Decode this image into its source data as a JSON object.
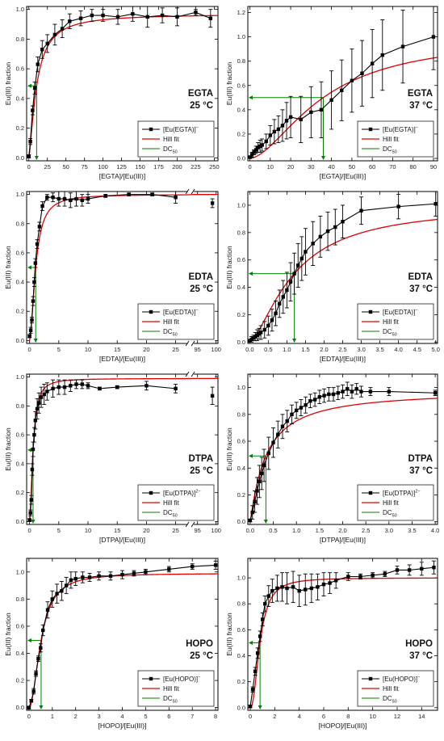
{
  "figure": {
    "y_label": "Eu(III) fraction",
    "legend_fit": "Hill fit",
    "legend_dc50": "DC",
    "legend_dc50_sub": "50",
    "colors": {
      "data": "#000000",
      "fit": "#e00000",
      "dc50": "#008000"
    }
  },
  "chart_data": [
    {
      "type": "line",
      "title": "EGTA",
      "subtitle": "25 °C",
      "xlabel": "[EGTA]/[Eu(III)]",
      "ylabel": "Eu(III) fraction",
      "legend": [
        "[Eu(EGTA)]",
        "Hill fit",
        "DC50"
      ],
      "legend_sup": "−",
      "xlim": [
        -3,
        255
      ],
      "ylim": [
        -0.02,
        1.02
      ],
      "xticks": [
        0,
        25,
        50,
        75,
        100,
        125,
        150,
        175,
        200,
        225,
        250
      ],
      "yticks": [
        0,
        0.2,
        0.4,
        0.6,
        0.8,
        1.0
      ],
      "x": [
        0,
        2,
        5,
        8,
        12,
        18,
        25,
        35,
        45,
        55,
        70,
        85,
        100,
        120,
        140,
        160,
        180,
        200,
        225,
        245
      ],
      "y": [
        0.01,
        0.11,
        0.32,
        0.47,
        0.63,
        0.73,
        0.77,
        0.83,
        0.87,
        0.92,
        0.94,
        0.96,
        0.96,
        0.95,
        0.97,
        0.95,
        0.96,
        0.95,
        0.98,
        0.94
      ],
      "err": [
        0.01,
        0.02,
        0.03,
        0.04,
        0.05,
        0.06,
        0.06,
        0.07,
        0.06,
        0.05,
        0.05,
        0.04,
        0.04,
        0.05,
        0.05,
        0.07,
        0.05,
        0.06,
        0.02,
        0.06
      ],
      "hill": {
        "top": 0.97,
        "k": 10.5,
        "n": 1.4
      },
      "dc50": 10.5
    },
    {
      "type": "line",
      "title": "EGTA",
      "subtitle": "37 °C",
      "xlabel": "[EGTA]/[Eu(III)]",
      "ylabel": "Eu(III) fraction",
      "legend": [
        "[Eu(EGTA)]",
        "Hill fit",
        "DC50"
      ],
      "legend_sup": "−",
      "xlim": [
        -1,
        92
      ],
      "ylim": [
        -0.02,
        1.25
      ],
      "xticks": [
        0,
        10,
        20,
        30,
        40,
        50,
        60,
        70,
        80,
        90
      ],
      "yticks": [
        0,
        0.2,
        0.4,
        0.6,
        0.8,
        1.0,
        1.2
      ],
      "x": [
        0,
        1,
        2,
        3,
        4,
        5,
        6,
        8,
        10,
        12,
        14,
        16,
        18,
        20,
        25,
        30,
        35,
        40,
        45,
        50,
        55,
        60,
        65,
        75,
        90
      ],
      "y": [
        0.01,
        0.03,
        0.05,
        0.07,
        0.09,
        0.1,
        0.11,
        0.14,
        0.19,
        0.22,
        0.24,
        0.27,
        0.31,
        0.34,
        0.32,
        0.38,
        0.4,
        0.48,
        0.56,
        0.64,
        0.7,
        0.78,
        0.85,
        0.92,
        1.0
      ],
      "err": [
        0.01,
        0.02,
        0.02,
        0.03,
        0.04,
        0.05,
        0.05,
        0.06,
        0.08,
        0.1,
        0.11,
        0.13,
        0.15,
        0.17,
        0.19,
        0.21,
        0.23,
        0.24,
        0.25,
        0.26,
        0.27,
        0.28,
        0.29,
        0.3,
        0.27
      ],
      "hill": {
        "top": 1.0,
        "k": 36,
        "n": 1.7
      },
      "dc50": 36
    },
    {
      "type": "line",
      "title": "EDTA",
      "subtitle": "25 °C",
      "xlabel": "[EDTA]/[Eu(III)]",
      "ylabel": "Eu(III) fraction",
      "legend": [
        "[Eu(EDTA)]",
        "Hill fit",
        "DC50"
      ],
      "legend_sup": "−",
      "break": {
        "x0": 27,
        "x1": 94,
        "left_w": 0.84
      },
      "xlim_left": [
        -0.5,
        27
      ],
      "xlim_right": [
        94,
        100.5
      ],
      "ylim": [
        -0.02,
        1.02
      ],
      "xticks_left": [
        0,
        5,
        10,
        15,
        20,
        25
      ],
      "xticks_right": [
        95,
        100
      ],
      "yticks": [
        0,
        0.2,
        0.4,
        0.6,
        0.8,
        1.0
      ],
      "x": [
        0,
        0.2,
        0.4,
        0.6,
        0.8,
        1.0,
        1.3,
        1.7,
        2.2,
        3.0,
        4.0,
        5.0,
        6.0,
        7.0,
        8.0,
        9.0,
        10.0,
        13.0,
        17.0,
        21.0,
        25.0,
        99.0
      ],
      "y": [
        0.03,
        0.07,
        0.14,
        0.27,
        0.4,
        0.53,
        0.66,
        0.78,
        0.92,
        0.98,
        0.98,
        0.97,
        0.97,
        0.96,
        0.97,
        0.96,
        0.97,
        0.99,
        1.0,
        1.0,
        0.98,
        0.94
      ],
      "err": [
        0.01,
        0.02,
        0.02,
        0.03,
        0.03,
        0.03,
        0.03,
        0.03,
        0.03,
        0.02,
        0.03,
        0.05,
        0.05,
        0.05,
        0.05,
        0.04,
        0.03,
        0.01,
        0.01,
        0.01,
        0.04,
        0.03
      ],
      "hill": {
        "top": 1.0,
        "k": 1.05,
        "n": 1.8
      },
      "dc50": 1.05
    },
    {
      "type": "line",
      "title": "EDTA",
      "subtitle": "37 °C",
      "xlabel": "[EDTA]/[Eu(III)]",
      "ylabel": "Eu(III) fraction",
      "legend": [
        "[Eu(EDTA)]",
        "Hill fit",
        "DC50"
      ],
      "legend_sup": "−",
      "xlim": [
        -0.05,
        5.05
      ],
      "ylim": [
        -0.01,
        1.1
      ],
      "xticks": [
        0,
        0.5,
        1.0,
        1.5,
        2.0,
        2.5,
        3.0,
        3.5,
        4.0,
        4.5,
        5.0
      ],
      "yticks": [
        0,
        0.2,
        0.4,
        0.6,
        0.8,
        1.0
      ],
      "x": [
        0,
        0.05,
        0.1,
        0.15,
        0.2,
        0.25,
        0.3,
        0.4,
        0.5,
        0.6,
        0.7,
        0.8,
        0.9,
        1.0,
        1.1,
        1.2,
        1.3,
        1.4,
        1.5,
        1.7,
        1.9,
        2.1,
        2.3,
        2.5,
        3.0,
        4.0,
        5.0
      ],
      "y": [
        0.01,
        0.02,
        0.03,
        0.04,
        0.05,
        0.06,
        0.07,
        0.09,
        0.12,
        0.16,
        0.21,
        0.28,
        0.33,
        0.38,
        0.44,
        0.5,
        0.56,
        0.61,
        0.66,
        0.72,
        0.77,
        0.81,
        0.84,
        0.88,
        0.96,
        0.99,
        1.01
      ],
      "err": [
        0.01,
        0.02,
        0.02,
        0.03,
        0.04,
        0.04,
        0.05,
        0.06,
        0.07,
        0.08,
        0.09,
        0.1,
        0.12,
        0.13,
        0.14,
        0.15,
        0.16,
        0.16,
        0.17,
        0.16,
        0.15,
        0.14,
        0.13,
        0.12,
        0.1,
        0.09,
        0.09
      ],
      "hill": {
        "top": 1.0,
        "k": 1.2,
        "n": 1.5
      },
      "dc50": 1.2
    },
    {
      "type": "line",
      "title": "DTPA",
      "subtitle": "25 °C",
      "xlabel": "[DTPA]/[Eu(III)]",
      "ylabel": "Eu(III) fraction",
      "legend": [
        "[Eu(DTPA)]",
        "Hill fit",
        "DC50"
      ],
      "legend_sup": "2−",
      "break": {
        "x0": 27,
        "x1": 94,
        "left_w": 0.84
      },
      "xlim_left": [
        -0.5,
        27
      ],
      "xlim_right": [
        94,
        100.5
      ],
      "ylim": [
        -0.02,
        1.02
      ],
      "xticks_left": [
        0,
        5,
        10,
        15,
        20,
        25
      ],
      "xticks_right": [
        95,
        100
      ],
      "yticks": [
        0,
        0.2,
        0.4,
        0.6,
        0.8,
        1.0
      ],
      "x": [
        0,
        0.15,
        0.3,
        0.45,
        0.6,
        0.8,
        1.0,
        1.3,
        1.6,
        2.0,
        2.5,
        3.0,
        4.0,
        5.0,
        6.0,
        7.0,
        8.0,
        9.0,
        10.0,
        12.0,
        15.0,
        20.0,
        25.0,
        99.0
      ],
      "y": [
        0.01,
        0.06,
        0.15,
        0.36,
        0.5,
        0.6,
        0.7,
        0.78,
        0.82,
        0.86,
        0.88,
        0.9,
        0.92,
        0.93,
        0.93,
        0.94,
        0.95,
        0.95,
        0.94,
        0.92,
        0.93,
        0.94,
        0.92,
        0.87
      ],
      "err": [
        0.01,
        0.02,
        0.03,
        0.04,
        0.05,
        0.05,
        0.06,
        0.07,
        0.07,
        0.07,
        0.07,
        0.06,
        0.06,
        0.05,
        0.05,
        0.04,
        0.03,
        0.03,
        0.02,
        0.01,
        0.01,
        0.03,
        0.03,
        0.06
      ],
      "hill": {
        "top": 0.99,
        "k": 0.6,
        "n": 1.8
      },
      "dc50": 0.6
    },
    {
      "type": "line",
      "title": "DTPA",
      "subtitle": "37 °C",
      "xlabel": "[DTPA]/[Eu(III)]",
      "ylabel": "Eu(III) fraction",
      "legend": [
        "[Eu(DTPA)]",
        "Hill fit",
        "DC50"
      ],
      "legend_sup": "2−",
      "xlim": [
        -0.05,
        4.05
      ],
      "ylim": [
        -0.02,
        1.1
      ],
      "xticks": [
        0,
        0.5,
        1.0,
        1.5,
        2.0,
        2.5,
        3.0,
        3.5,
        4.0
      ],
      "yticks": [
        0,
        0.2,
        0.4,
        0.6,
        0.8,
        1.0
      ],
      "x": [
        0,
        0.05,
        0.1,
        0.15,
        0.2,
        0.25,
        0.3,
        0.4,
        0.5,
        0.6,
        0.7,
        0.8,
        0.9,
        1.0,
        1.1,
        1.2,
        1.3,
        1.4,
        1.5,
        1.6,
        1.7,
        1.8,
        1.9,
        2.0,
        2.1,
        2.2,
        2.3,
        2.4,
        2.6,
        3.0,
        4.0
      ],
      "y": [
        0.01,
        0.07,
        0.15,
        0.23,
        0.3,
        0.36,
        0.42,
        0.51,
        0.59,
        0.65,
        0.71,
        0.75,
        0.8,
        0.83,
        0.85,
        0.87,
        0.9,
        0.91,
        0.93,
        0.94,
        0.95,
        0.95,
        0.96,
        0.97,
        0.99,
        0.97,
        0.99,
        0.97,
        0.97,
        0.97,
        0.96
      ],
      "err": [
        0.01,
        0.05,
        0.08,
        0.1,
        0.12,
        0.12,
        0.12,
        0.12,
        0.11,
        0.1,
        0.09,
        0.08,
        0.07,
        0.06,
        0.06,
        0.06,
        0.05,
        0.05,
        0.05,
        0.05,
        0.05,
        0.05,
        0.05,
        0.05,
        0.05,
        0.05,
        0.04,
        0.04,
        0.03,
        0.03,
        0.02
      ],
      "hill": {
        "top": 0.98,
        "k": 0.34,
        "n": 1.1
      },
      "dc50": 0.34
    },
    {
      "type": "line",
      "title": "HOPO",
      "subtitle": "25 °C",
      "xlabel": "[HOPO]/[Eu(III)]",
      "ylabel": "Eu(III) fraction",
      "legend": [
        "[Eu(HOPO)]",
        "Hill fit",
        "DC50"
      ],
      "legend_sup": "−",
      "xlim": [
        -0.1,
        8.1
      ],
      "ylim": [
        -0.02,
        1.1
      ],
      "xticks": [
        0,
        1,
        2,
        3,
        4,
        5,
        6,
        7,
        8
      ],
      "yticks": [
        0,
        0.2,
        0.4,
        0.6,
        0.8,
        1.0
      ],
      "x": [
        0,
        0.1,
        0.2,
        0.3,
        0.4,
        0.5,
        0.6,
        0.8,
        1.0,
        1.2,
        1.4,
        1.6,
        1.8,
        2.0,
        2.3,
        2.6,
        3.0,
        3.5,
        4.0,
        4.5,
        5.0,
        6.0,
        7.0,
        8.0
      ],
      "y": [
        0.0,
        0.05,
        0.12,
        0.25,
        0.36,
        0.44,
        0.57,
        0.72,
        0.8,
        0.84,
        0.86,
        0.9,
        0.94,
        0.95,
        0.96,
        0.96,
        0.97,
        0.97,
        0.98,
        0.99,
        1.0,
        1.02,
        1.04,
        1.05
      ],
      "err": [
        0.01,
        0.01,
        0.02,
        0.02,
        0.02,
        0.03,
        0.04,
        0.06,
        0.06,
        0.07,
        0.07,
        0.06,
        0.06,
        0.05,
        0.04,
        0.03,
        0.03,
        0.03,
        0.03,
        0.02,
        0.02,
        0.02,
        0.02,
        0.03
      ],
      "hill": {
        "top": 0.99,
        "k": 0.52,
        "n": 2.0
      },
      "dc50": 0.52
    },
    {
      "type": "line",
      "title": "HOPO",
      "subtitle": "37 °C",
      "xlabel": "[HOPO]/[Eu(III)]",
      "ylabel": "Eu(III) fraction",
      "legend": [
        "[Eu(HOPO)]",
        "Hill fit",
        "DC50"
      ],
      "legend_sup": "−",
      "xlim": [
        -0.2,
        15.3
      ],
      "ylim": [
        -0.02,
        1.15
      ],
      "xticks": [
        0,
        2,
        4,
        6,
        8,
        10,
        12,
        14
      ],
      "yticks": [
        0,
        0.2,
        0.4,
        0.6,
        0.8,
        1.0
      ],
      "x": [
        0,
        0.2,
        0.4,
        0.6,
        0.8,
        1.0,
        1.2,
        1.5,
        1.8,
        2.2,
        2.6,
        3.0,
        3.5,
        4.0,
        4.5,
        5.0,
        5.5,
        6.0,
        6.5,
        7.0,
        8.0,
        9.0,
        10.0,
        11.0,
        12.0,
        13.0,
        14.0,
        15.0
      ],
      "y": [
        0.01,
        0.14,
        0.28,
        0.42,
        0.55,
        0.68,
        0.8,
        0.86,
        0.9,
        0.92,
        0.93,
        0.92,
        0.93,
        0.9,
        0.91,
        0.92,
        0.93,
        0.95,
        0.96,
        0.98,
        1.01,
        1.01,
        1.02,
        1.03,
        1.06,
        1.06,
        1.07,
        1.08
      ],
      "err": [
        0.01,
        0.02,
        0.03,
        0.04,
        0.04,
        0.05,
        0.06,
        0.08,
        0.09,
        0.1,
        0.11,
        0.12,
        0.12,
        0.12,
        0.12,
        0.11,
        0.1,
        0.09,
        0.08,
        0.06,
        0.03,
        0.02,
        0.02,
        0.02,
        0.03,
        0.04,
        0.05,
        0.05
      ],
      "hill": {
        "top": 1.0,
        "k": 0.8,
        "n": 2.2
      },
      "dc50": 0.8
    }
  ]
}
